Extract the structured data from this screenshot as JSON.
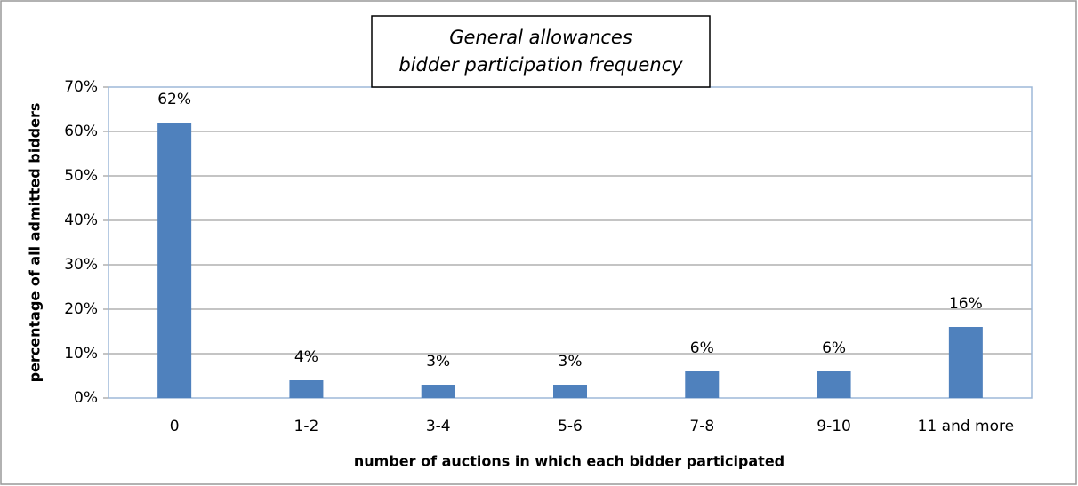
{
  "chart_data": {
    "type": "bar",
    "title": [
      "General allowances",
      "bidder participation frequency"
    ],
    "x_label": "number of auctions in which each bidder participated",
    "y_label": "percentage of all admitted bidders",
    "categories": [
      "0",
      "1-2",
      "3-4",
      "5-6",
      "7-8",
      "9-10",
      "11 and more"
    ],
    "values": [
      62,
      4,
      3,
      3,
      6,
      6,
      16
    ],
    "value_labels": [
      "62%",
      "4%",
      "3%",
      "3%",
      "6%",
      "6%",
      "16%"
    ],
    "color": "#4f81bd",
    "ylim": [
      0,
      70
    ],
    "yticks": [
      {
        "value": 0,
        "label": "0%"
      },
      {
        "value": 10,
        "label": "10%"
      },
      {
        "value": 20,
        "label": "20%"
      },
      {
        "value": 30,
        "label": "30%"
      },
      {
        "value": 40,
        "label": "40%"
      },
      {
        "value": 50,
        "label": "50%"
      },
      {
        "value": 60,
        "label": "60%"
      },
      {
        "value": 70,
        "label": "70%"
      }
    ],
    "grid": true
  }
}
